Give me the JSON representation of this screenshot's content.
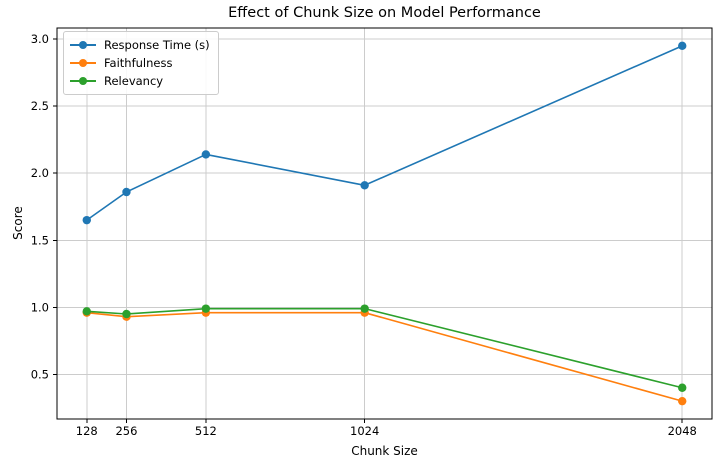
{
  "chart_data": {
    "type": "line",
    "title": "Effect of Chunk Size on Model Performance",
    "xlabel": "Chunk Size",
    "ylabel": "Score",
    "x": [
      128,
      256,
      512,
      1024,
      2048
    ],
    "x_tick_labels": [
      "128",
      "256",
      "512",
      "1024",
      "2048"
    ],
    "y_ticks": [
      0.5,
      1.0,
      1.5,
      2.0,
      2.5,
      3.0
    ],
    "xlim": [
      32,
      2144
    ],
    "ylim": [
      0.167,
      3.083
    ],
    "grid": true,
    "grid_color": "#cccccc",
    "spine_color": "#000000",
    "legend_position": "upper-left",
    "series": [
      {
        "name": "Response Time (s)",
        "color": "#1f77b4",
        "values": [
          1.65,
          1.86,
          2.14,
          1.91,
          2.95
        ]
      },
      {
        "name": "Faithfulness",
        "color": "#ff7f0e",
        "values": [
          0.96,
          0.93,
          0.96,
          0.96,
          0.3
        ]
      },
      {
        "name": "Relevancy",
        "color": "#2ca02c",
        "values": [
          0.97,
          0.95,
          0.99,
          0.99,
          0.4
        ]
      }
    ]
  }
}
